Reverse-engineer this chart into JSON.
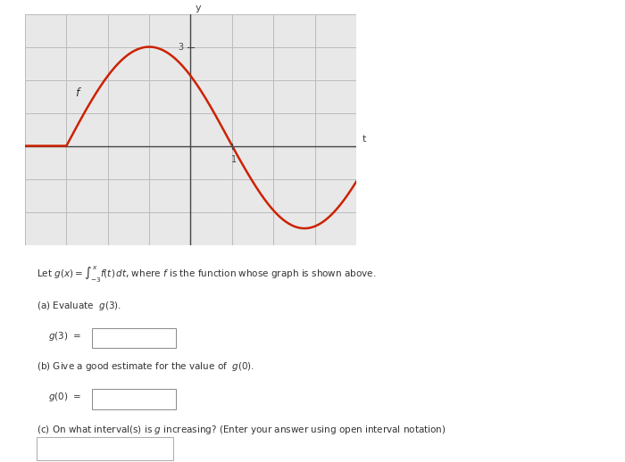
{
  "graph_bg": "#e8e8e8",
  "page_bg": "#ffffff",
  "curve_color": "#cc2200",
  "curve_lw": 1.8,
  "grid_color": "#bbbbbb",
  "axis_color": "#444444",
  "x_label": "t",
  "y_label": "y",
  "f_label": "f",
  "tick_label_1_x": "1",
  "tick_label_3_y": "3",
  "x_min": -4,
  "x_max": 4,
  "y_min": -3,
  "y_max": 4,
  "grid_x_ticks": [
    -4,
    -3,
    -2,
    -1,
    0,
    1,
    2,
    3,
    4
  ],
  "grid_y_ticks": [
    -3,
    -2,
    -1,
    0,
    1,
    2,
    3,
    4
  ],
  "font_size_small": 7.5,
  "formula_line1": "Let $g(x) = \\displaystyle\\int_{-3}^{x} f(t)\\, dt$, where $f$ is the function whose graph is shown above.",
  "part_a_label": "(a) Evaluate  $g(3)$.",
  "part_a_eq": "$g(3)$ =",
  "part_b_label": "(b) Give a good estimate for the value of  $g(0)$.",
  "part_b_eq": "$g(0)$ =",
  "part_c_label": "(c) On what interval(s) is $g$ increasing? (Enter your answer using open interval notation)"
}
